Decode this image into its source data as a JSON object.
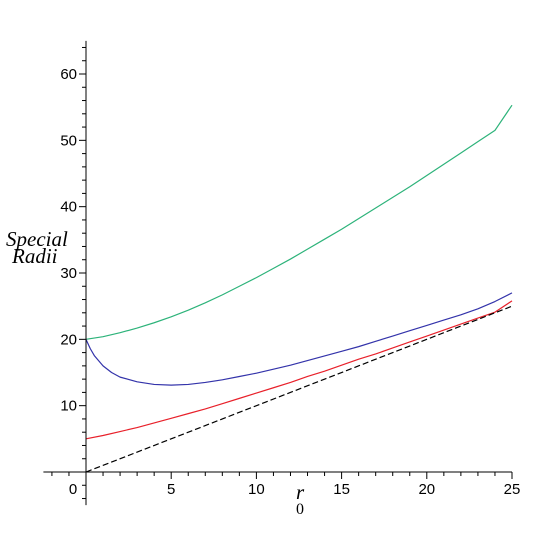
{
  "chart_data": {
    "type": "line",
    "xlabel": "r",
    "xlabel_subscript": "0",
    "ylabel_lines": [
      "Special",
      "Radii"
    ],
    "xlim": [
      -2.5,
      25
    ],
    "ylim": [
      -5,
      65
    ],
    "x_ticks": [
      0,
      5,
      10,
      15,
      20,
      25
    ],
    "y_ticks": [
      10,
      20,
      30,
      40,
      50,
      60
    ],
    "grid": false,
    "series": [
      {
        "color": "#2db37a",
        "x": [
          0,
          1,
          2,
          3,
          4,
          5,
          6,
          7,
          8,
          9,
          10,
          11,
          12,
          13,
          14,
          15,
          16,
          17,
          18,
          19,
          20,
          21,
          22,
          23,
          24,
          25
        ],
        "y": [
          20.0,
          20.4,
          21.0,
          21.7,
          22.5,
          23.4,
          24.4,
          25.5,
          26.7,
          28.0,
          29.3,
          30.7,
          32.1,
          33.6,
          35.1,
          36.6,
          38.2,
          39.8,
          41.4,
          43.0,
          44.7,
          46.4,
          48.1,
          49.8,
          51.5,
          55.3
        ]
      },
      {
        "color": "#3333aa",
        "x": [
          0,
          0.25,
          0.5,
          1,
          1.5,
          2,
          3,
          4,
          5,
          6,
          7,
          8,
          9,
          10,
          11,
          12,
          13,
          14,
          15,
          16,
          17,
          18,
          19,
          20,
          21,
          22,
          23,
          24,
          25
        ],
        "y": [
          20.0,
          18.6,
          17.5,
          16.0,
          15.0,
          14.3,
          13.6,
          13.2,
          13.1,
          13.2,
          13.5,
          13.9,
          14.4,
          14.9,
          15.5,
          16.1,
          16.8,
          17.5,
          18.2,
          18.9,
          19.7,
          20.5,
          21.3,
          22.1,
          22.9,
          23.7,
          24.6,
          25.7,
          27.0
        ]
      },
      {
        "color": "#e8202a",
        "x": [
          0,
          1,
          2,
          3,
          4,
          5,
          6,
          7,
          8,
          9,
          10,
          11,
          12,
          13,
          14,
          15,
          16,
          17,
          18,
          19,
          20,
          21,
          22,
          23,
          24,
          25
        ],
        "y": [
          5.0,
          5.5,
          6.1,
          6.7,
          7.4,
          8.1,
          8.8,
          9.5,
          10.3,
          11.1,
          11.9,
          12.7,
          13.5,
          14.4,
          15.2,
          16.1,
          17.0,
          17.8,
          18.7,
          19.6,
          20.5,
          21.4,
          22.3,
          23.2,
          24.1,
          25.8
        ]
      },
      {
        "color": "#000000",
        "dashed": true,
        "x": [
          0,
          25
        ],
        "y": [
          0,
          25
        ]
      }
    ]
  }
}
